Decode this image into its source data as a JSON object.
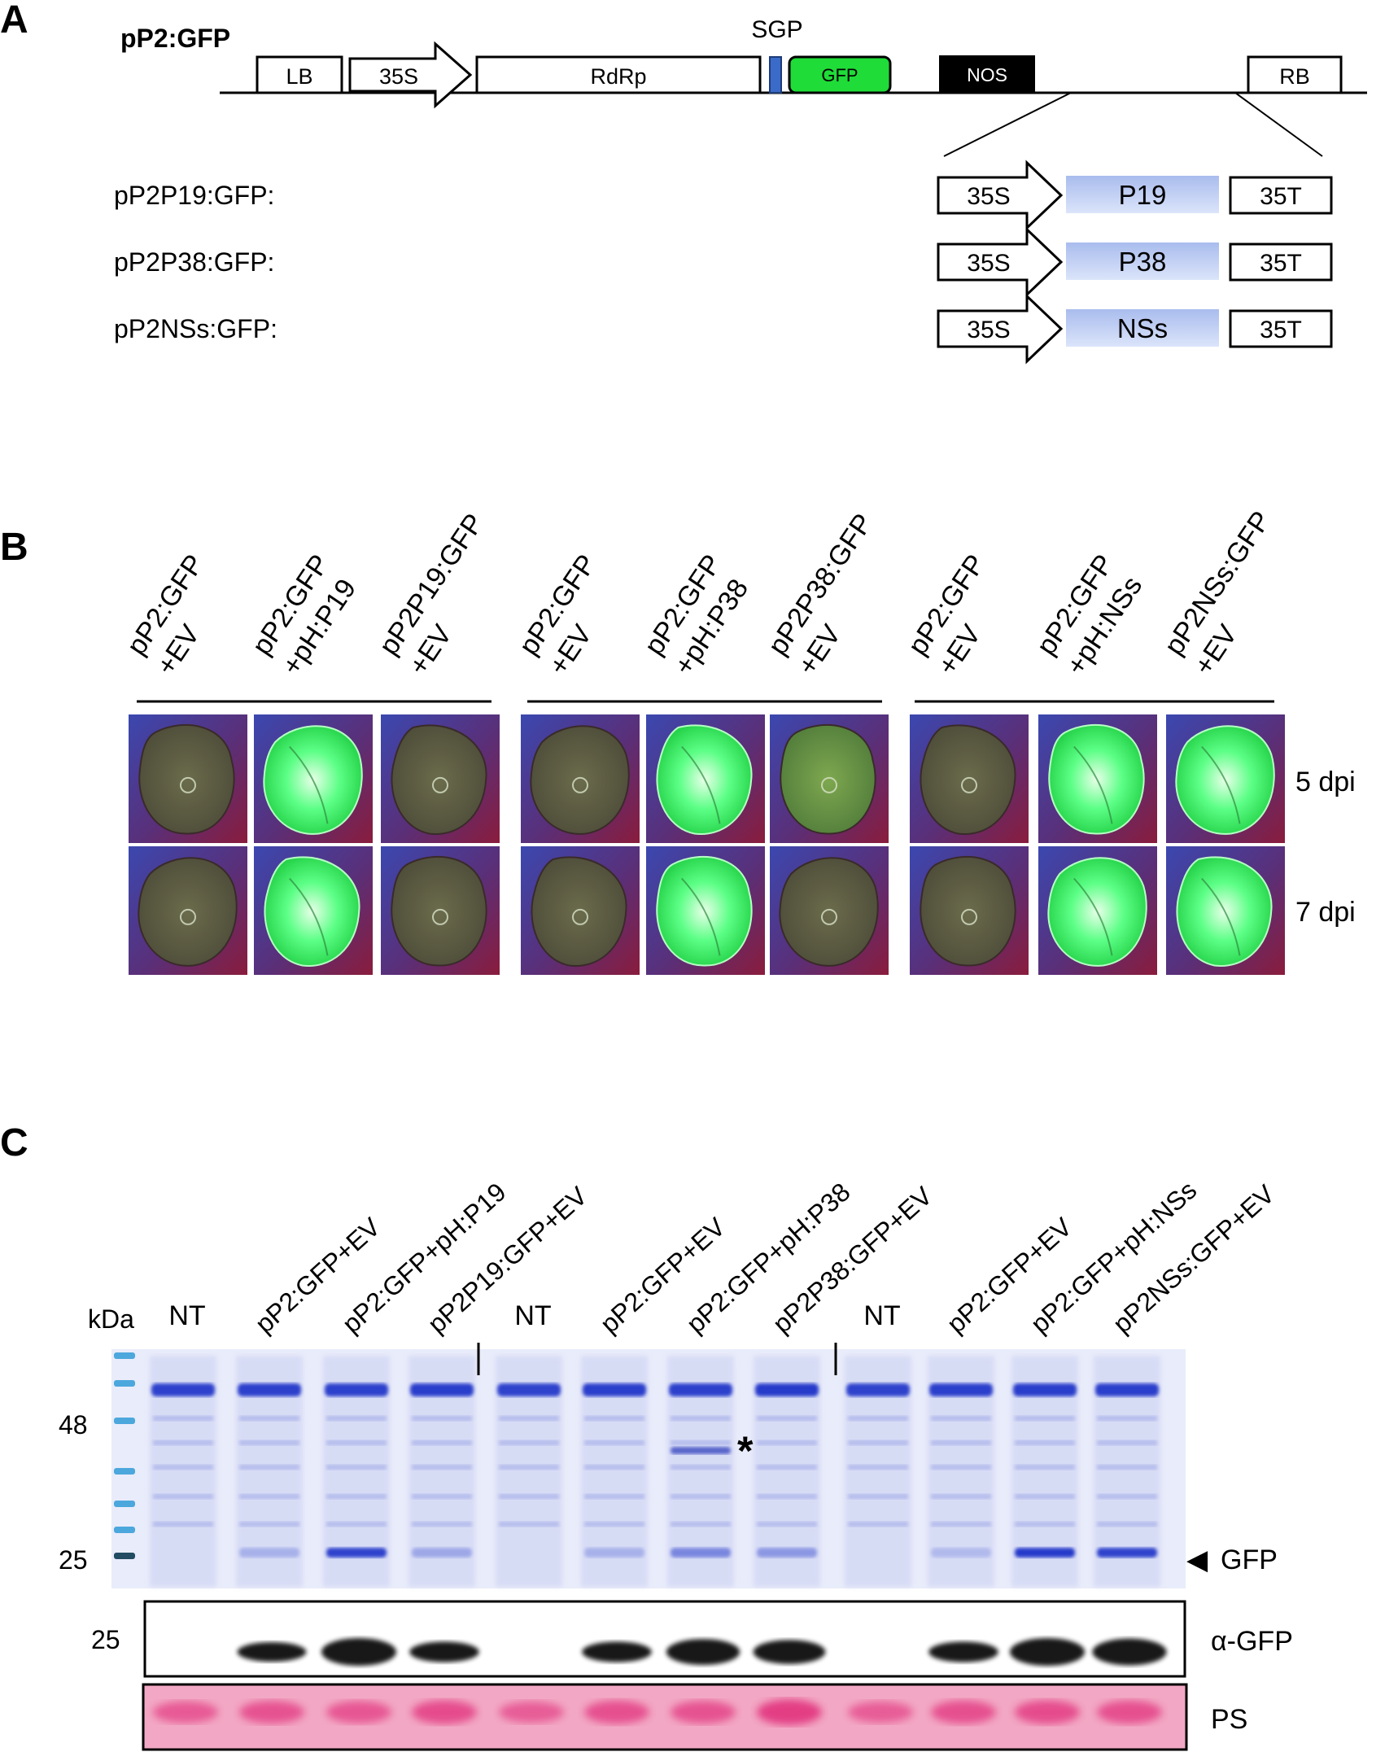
{
  "panel_a": {
    "label": "A",
    "construct_name": "pP2:GFP",
    "sgp_label": "SGP",
    "elements": [
      "LB",
      "35S",
      "RdRp",
      "GFP",
      "NOS",
      "RB"
    ],
    "constructs": [
      {
        "name": "pP2P19:GFP:",
        "promoter": "35S",
        "gene": "P19",
        "terminator": "35T"
      },
      {
        "name": "pP2P38:GFP:",
        "promoter": "35S",
        "gene": "P38",
        "terminator": "35T"
      },
      {
        "name": "pP2NSs:GFP:",
        "promoter": "35S",
        "gene": "NSs",
        "terminator": "35T"
      }
    ]
  },
  "panel_b": {
    "label": "B",
    "groups": [
      {
        "samples": [
          {
            "line1": "pP2:GFP",
            "line2": "+EV",
            "fluorescence": [
              "dim",
              "dim"
            ]
          },
          {
            "line1": "pP2:GFP",
            "line2": "+pH:P19",
            "fluorescence": [
              "bright",
              "bright"
            ]
          },
          {
            "line1": "pP2P19:GFP",
            "line2": "+EV",
            "fluorescence": [
              "dim",
              "dim"
            ]
          }
        ]
      },
      {
        "samples": [
          {
            "line1": "pP2:GFP",
            "line2": "+EV",
            "fluorescence": [
              "dim",
              "dim"
            ]
          },
          {
            "line1": "pP2:GFP",
            "line2": "+pH:P38",
            "fluorescence": [
              "bright",
              "bright"
            ]
          },
          {
            "line1": "pP2P38:GFP",
            "line2": "+EV",
            "fluorescence": [
              "moderate",
              "dim"
            ]
          }
        ]
      },
      {
        "samples": [
          {
            "line1": "pP2:GFP",
            "line2": "+EV",
            "fluorescence": [
              "dim",
              "dim"
            ]
          },
          {
            "line1": "pP2:GFP",
            "line2": "+pH:NSs",
            "fluorescence": [
              "bright",
              "bright"
            ]
          },
          {
            "line1": "pP2NSs:GFP",
            "line2": "+EV",
            "fluorescence": [
              "bright",
              "bright"
            ]
          }
        ]
      }
    ],
    "timepoints": [
      "5 dpi",
      "7 dpi"
    ]
  },
  "panel_c": {
    "label": "C",
    "kda_label": "kDa",
    "markers": [
      "48",
      "25"
    ],
    "wb_marker": "25",
    "lanes": [
      {
        "label": "NT",
        "gel_25kda": 0.0,
        "wb_gfp": 0.0,
        "ps": 0.55
      },
      {
        "label": "pP2:GFP+EV",
        "gel_25kda": 0.1,
        "wb_gfp": 0.55,
        "ps": 0.65
      },
      {
        "label": "pP2:GFP+pH:P19",
        "gel_25kda": 0.75,
        "wb_gfp": 1.0,
        "ps": 0.6
      },
      {
        "label": "pP2P19:GFP+EV",
        "gel_25kda": 0.15,
        "wb_gfp": 0.6,
        "ps": 0.75
      },
      {
        "label": "NT",
        "gel_25kda": 0.0,
        "wb_gfp": 0.0,
        "ps": 0.5
      },
      {
        "label": "pP2:GFP+EV",
        "gel_25kda": 0.1,
        "wb_gfp": 0.6,
        "ps": 0.7
      },
      {
        "label": "pP2:GFP+pH:P38",
        "gel_25kda": 0.35,
        "wb_gfp": 0.9,
        "ps": 0.65
      },
      {
        "label": "pP2P38:GFP+EV",
        "gel_25kda": 0.25,
        "wb_gfp": 0.8,
        "ps": 0.95
      },
      {
        "label": "NT",
        "gel_25kda": 0.0,
        "wb_gfp": 0.0,
        "ps": 0.5
      },
      {
        "label": "pP2:GFP+EV",
        "gel_25kda": 0.05,
        "wb_gfp": 0.6,
        "ps": 0.7
      },
      {
        "label": "pP2:GFP+pH:NSs",
        "gel_25kda": 0.8,
        "wb_gfp": 1.0,
        "ps": 0.75
      },
      {
        "label": "pP2NSs:GFP+EV",
        "gel_25kda": 0.75,
        "wb_gfp": 0.95,
        "ps": 0.7
      }
    ],
    "asterisk": "*",
    "gfp_arrow": "◀",
    "gfp_label": "GFP",
    "wb_label": "α-GFP",
    "ps_label": "PS"
  },
  "colors": {
    "gfp_box": "#1fdc38",
    "sgp_box": "#3a6bc8",
    "nos_box": "#000000",
    "gene_box": "#b6c6ef",
    "leaf_bg_blue": "#3b48b0",
    "leaf_bg_red": "#7a1a38",
    "leaf_dim": "#5a5a3e",
    "leaf_bright": "#49ff7a",
    "gel_bg": "#e9ecfa",
    "gel_band": "#1f30c8",
    "wb_band": "#000000",
    "ps_bg": "#f2a8c4",
    "ps_band": "#e2357f"
  }
}
